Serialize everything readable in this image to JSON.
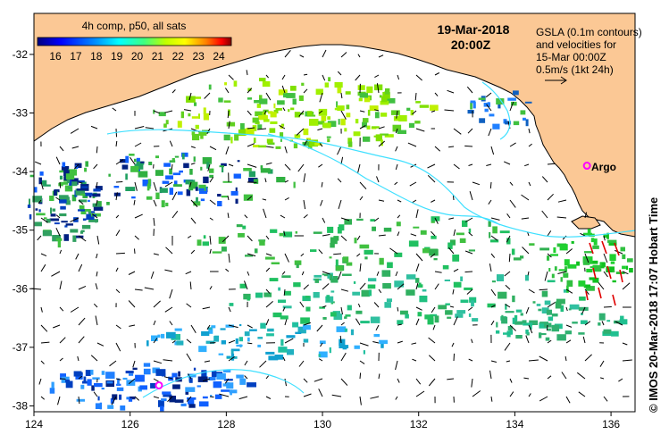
{
  "colorbar": {
    "title": "4h comp, p50, all sats",
    "ticks": [
      "16",
      "17",
      "18",
      "19",
      "20",
      "21",
      "22",
      "23",
      "24"
    ],
    "colors": [
      "#00007f",
      "#0000ff",
      "#0080ff",
      "#00ffff",
      "#00ff80",
      "#80ff00",
      "#ffff00",
      "#ff8000",
      "#ff0000",
      "#7f0000"
    ]
  },
  "timestamp": {
    "date": "19-Mar-2018",
    "time": "20:00Z"
  },
  "legend": {
    "line1": "GSLA (0.1m contours)",
    "line2": "and velocities for",
    "line3": "15-Mar 00:00Z",
    "scale": "0.5m/s (1kt 24h)"
  },
  "argo": {
    "label": "Argo",
    "color": "#ff00ff",
    "floats": [
      {
        "lon": 135.5,
        "lat": -33.9
      },
      {
        "lon": 126.6,
        "lat": -37.65
      }
    ]
  },
  "axes": {
    "lon_ticks": [
      "124",
      "126",
      "128",
      "130",
      "132",
      "134",
      "136"
    ],
    "lat_ticks": [
      "-32",
      "-33",
      "-34",
      "-35",
      "-36",
      "-37",
      "-38"
    ],
    "lon_range": [
      124,
      136.5
    ],
    "lat_range": [
      -38.1,
      -31.3
    ]
  },
  "credit": "© IMOS 20-Mar-2018 17:07 Hobart Time",
  "colors": {
    "land": "#fbc895",
    "ocean": "#ffffff",
    "contour": "#40e0ff"
  }
}
